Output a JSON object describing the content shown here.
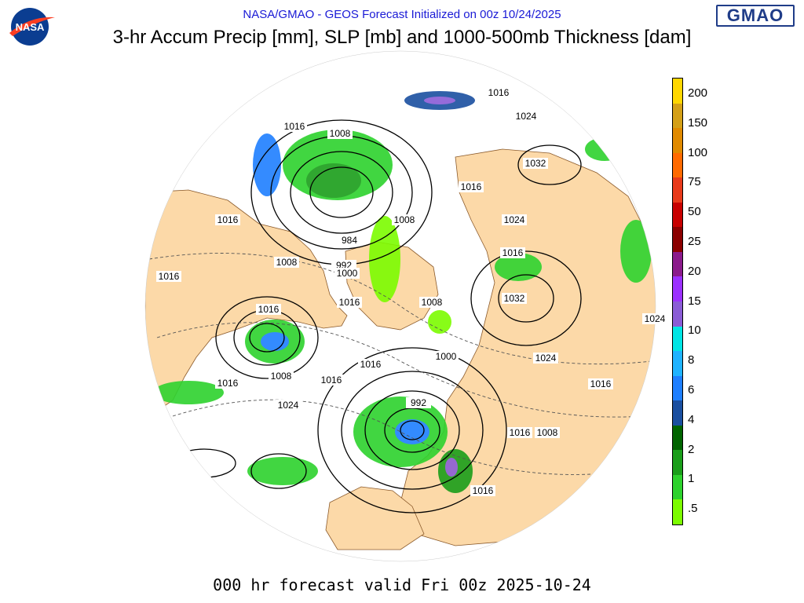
{
  "header": {
    "subtitle": "NASA/GMAO - GEOS Forecast Initialized on 00z 10/24/2025",
    "title": "3-hr Accum Precip [mm], SLP [mb] and 1000-500mb Thickness [dam]",
    "gmao_logo_text": "GMAO",
    "nasa_logo_text": "NASA"
  },
  "footer": {
    "valid_text": "000 hr forecast valid Fri 00z 2025-10-24"
  },
  "colorbar": {
    "labels": [
      "200",
      "150",
      "100",
      "75",
      "50",
      "25",
      "20",
      "15",
      "10",
      "8",
      "6",
      "4",
      "2",
      "1",
      ".5"
    ],
    "colors": [
      "#ffd700",
      "#d4a017",
      "#e08a00",
      "#ff6a00",
      "#e83a1a",
      "#c80000",
      "#8b0000",
      "#8b1a8b",
      "#9b30ff",
      "#8a5cd6",
      "#00e5e5",
      "#1fb3ff",
      "#1e7fff",
      "#1a4fa0",
      "#006400",
      "#1a9e1a",
      "#2dd22d",
      "#7cfc00"
    ]
  },
  "map": {
    "land_color": "#fcd9a8",
    "ocean_color": "#ffffff",
    "pressure_labels": [
      {
        "text": "1016"
      },
      {
        "text": "1024"
      },
      {
        "text": "1016"
      },
      {
        "text": "1008"
      },
      {
        "text": "1032"
      },
      {
        "text": "1016"
      },
      {
        "text": "1016"
      },
      {
        "text": "1008"
      },
      {
        "text": "1024"
      },
      {
        "text": "984"
      },
      {
        "text": "992"
      },
      {
        "text": "1000"
      },
      {
        "text": "1008"
      },
      {
        "text": "1016"
      },
      {
        "text": "1016"
      },
      {
        "text": "1016"
      },
      {
        "text": "1032"
      },
      {
        "text": "1008"
      },
      {
        "text": "1016"
      },
      {
        "text": "1024"
      },
      {
        "text": "1000"
      },
      {
        "text": "1024"
      },
      {
        "text": "1016"
      },
      {
        "text": "1016"
      },
      {
        "text": "1008"
      },
      {
        "text": "1016"
      },
      {
        "text": "992"
      },
      {
        "text": "1024"
      },
      {
        "text": "1016"
      },
      {
        "text": "1016"
      },
      {
        "text": "1008"
      },
      {
        "text": "1016"
      }
    ]
  }
}
